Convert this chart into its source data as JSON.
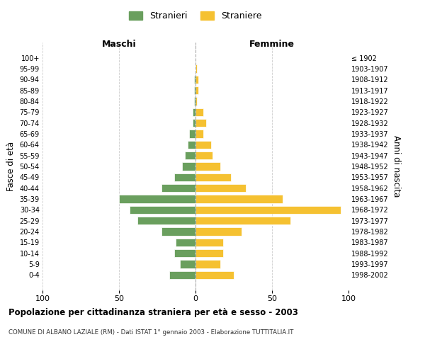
{
  "age_groups": [
    "100+",
    "95-99",
    "90-94",
    "85-89",
    "80-84",
    "75-79",
    "70-74",
    "65-69",
    "60-64",
    "55-59",
    "50-54",
    "45-49",
    "40-44",
    "35-39",
    "30-34",
    "25-29",
    "20-24",
    "15-19",
    "10-14",
    "5-9",
    "0-4"
  ],
  "birth_years": [
    "≤ 1902",
    "1903-1907",
    "1908-1912",
    "1913-1917",
    "1918-1922",
    "1923-1927",
    "1928-1932",
    "1933-1937",
    "1938-1942",
    "1943-1947",
    "1948-1952",
    "1953-1957",
    "1958-1962",
    "1963-1967",
    "1968-1972",
    "1973-1977",
    "1978-1982",
    "1983-1987",
    "1988-1992",
    "1993-1997",
    "1998-2002"
  ],
  "maschi": [
    0,
    0,
    1,
    1,
    1,
    2,
    2,
    4,
    5,
    7,
    9,
    14,
    22,
    50,
    43,
    38,
    22,
    13,
    14,
    10,
    17
  ],
  "femmine": [
    0,
    1,
    2,
    2,
    1,
    5,
    7,
    5,
    10,
    11,
    16,
    23,
    33,
    57,
    95,
    62,
    30,
    18,
    18,
    16,
    25
  ],
  "maschi_color": "#6a9f5e",
  "femmine_color": "#f5c131",
  "title": "Popolazione per cittadinanza straniera per età e sesso - 2003",
  "subtitle": "COMUNE DI ALBANO LAZIALE (RM) - Dati ISTAT 1° gennaio 2003 - Elaborazione TUTTITALIA.IT",
  "legend_maschi": "Stranieri",
  "legend_femmine": "Straniere",
  "xlabel_left": "Maschi",
  "xlabel_right": "Femmine",
  "ylabel_left": "Fasce di età",
  "ylabel_right": "Anni di nascita",
  "xlim": 100,
  "background_color": "#ffffff",
  "grid_color": "#cccccc"
}
